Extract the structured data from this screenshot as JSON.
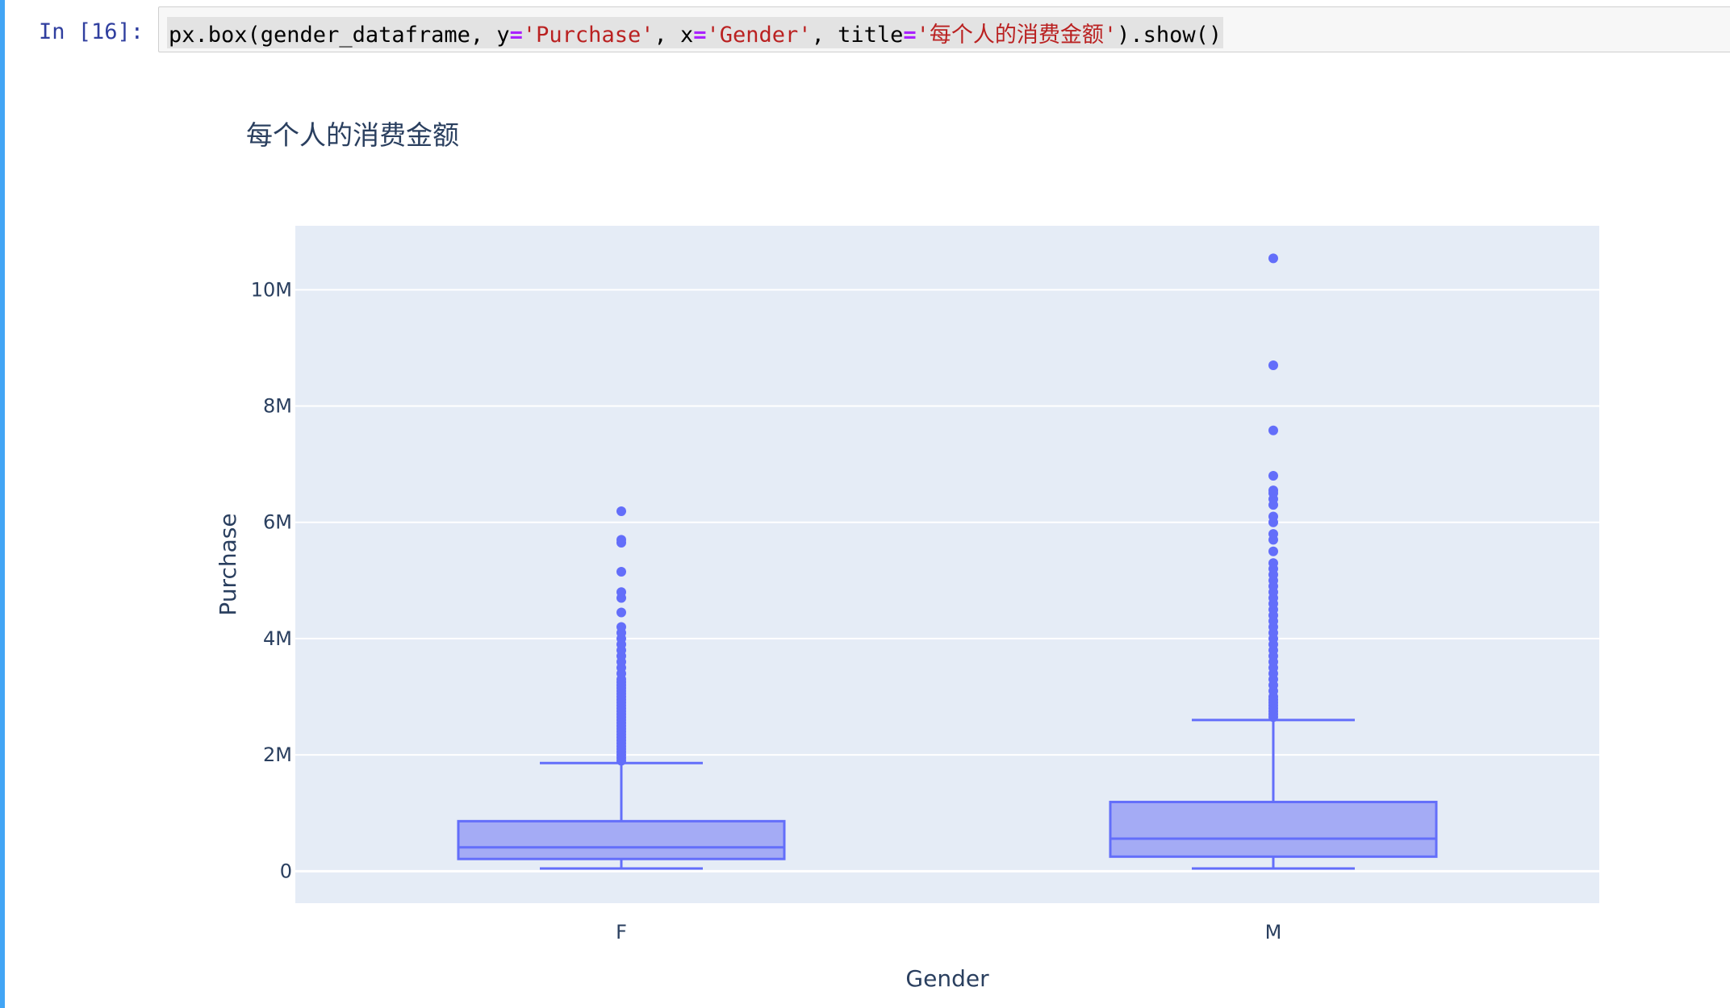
{
  "cell": {
    "prompt": "In [16]:",
    "code_parts": [
      "px.box(gender_dataframe, y",
      "=",
      "'Purchase'",
      ", x",
      "=",
      "'Gender'",
      ", title",
      "=",
      "'每个人的消费金额'",
      ").show()"
    ]
  },
  "chart_data": {
    "type": "box",
    "title": "每个人的消费金额",
    "xlabel": "Gender",
    "ylabel": "Purchase",
    "categories": [
      "F",
      "M"
    ],
    "y_range": [
      -550000,
      11100000
    ],
    "y_ticks": [
      0,
      2000000,
      4000000,
      6000000,
      8000000,
      10000000
    ],
    "y_tick_labels": [
      "0",
      "2M",
      "4M",
      "6M",
      "8M",
      "10M"
    ],
    "boxes": [
      {
        "name": "F",
        "whisker_low": 47000,
        "q1": 210000,
        "median": 410000,
        "q3": 860000,
        "whisker_high": 1860000,
        "outliers": [
          1900000,
          1950000,
          2000000,
          2050000,
          2100000,
          2150000,
          2200000,
          2250000,
          2300000,
          2350000,
          2400000,
          2450000,
          2500000,
          2550000,
          2600000,
          2650000,
          2700000,
          2750000,
          2800000,
          2850000,
          2900000,
          2950000,
          3000000,
          3050000,
          3100000,
          3150000,
          3200000,
          3250000,
          3300000,
          3400000,
          3500000,
          3600000,
          3700000,
          3800000,
          3900000,
          4000000,
          4100000,
          4200000,
          4450000,
          4700000,
          4800000,
          5150000,
          5650000,
          5700000,
          6190000
        ]
      },
      {
        "name": "M",
        "whisker_low": 47000,
        "q1": 250000,
        "median": 560000,
        "q3": 1190000,
        "whisker_high": 2600000,
        "outliers": [
          2650000,
          2700000,
          2750000,
          2800000,
          2850000,
          2900000,
          2950000,
          3000000,
          3100000,
          3200000,
          3300000,
          3400000,
          3500000,
          3600000,
          3700000,
          3800000,
          3900000,
          4000000,
          4100000,
          4200000,
          4300000,
          4400000,
          4500000,
          4600000,
          4700000,
          4800000,
          4900000,
          5000000,
          5100000,
          5200000,
          5300000,
          5500000,
          5700000,
          5800000,
          6000000,
          6100000,
          6300000,
          6400000,
          6500000,
          6550000,
          6800000,
          7580000,
          8700000,
          10540000
        ]
      }
    ],
    "colors": {
      "box_line": "#636efa",
      "box_fill": "#a4abf5",
      "plot_bg": "#e5ecf6",
      "grid": "#ffffff",
      "text": "#2a3f5f"
    },
    "grid": true,
    "legend": "none"
  }
}
